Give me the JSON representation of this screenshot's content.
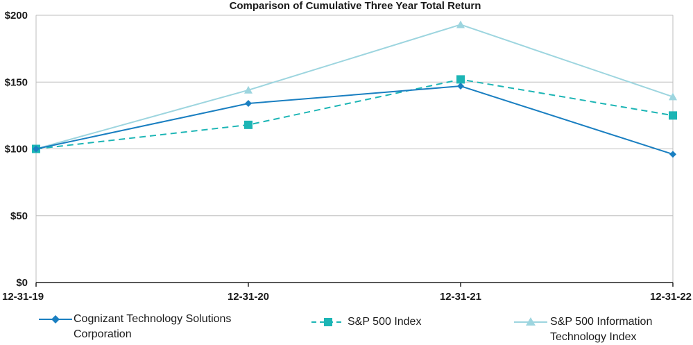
{
  "chart_data": {
    "type": "line",
    "title": "Comparison of Cumulative Three Year Total Return",
    "xlabel": "",
    "ylabel": "",
    "categories": [
      "12-31-19",
      "12-31-20",
      "12-31-21",
      "12-31-22"
    ],
    "y_ticks": [
      "$0",
      "$50",
      "$100",
      "$150",
      "$200"
    ],
    "ylim": [
      0,
      200
    ],
    "grid": true,
    "legend_position": "bottom",
    "series": [
      {
        "name": "Cognizant Technology Solutions Corporation",
        "values": [
          100,
          134,
          147,
          96
        ],
        "color": "#1a7fc1",
        "marker": "diamond",
        "dash": "solid"
      },
      {
        "name": "S&P 500 Index",
        "values": [
          100,
          118,
          152,
          125
        ],
        "color": "#1cb5b5",
        "marker": "square",
        "dash": "dashed"
      },
      {
        "name": "S&P 500 Information Technology Index",
        "values": [
          100,
          144,
          193,
          139
        ],
        "color": "#9dd5df",
        "marker": "triangle",
        "dash": "solid"
      }
    ]
  }
}
